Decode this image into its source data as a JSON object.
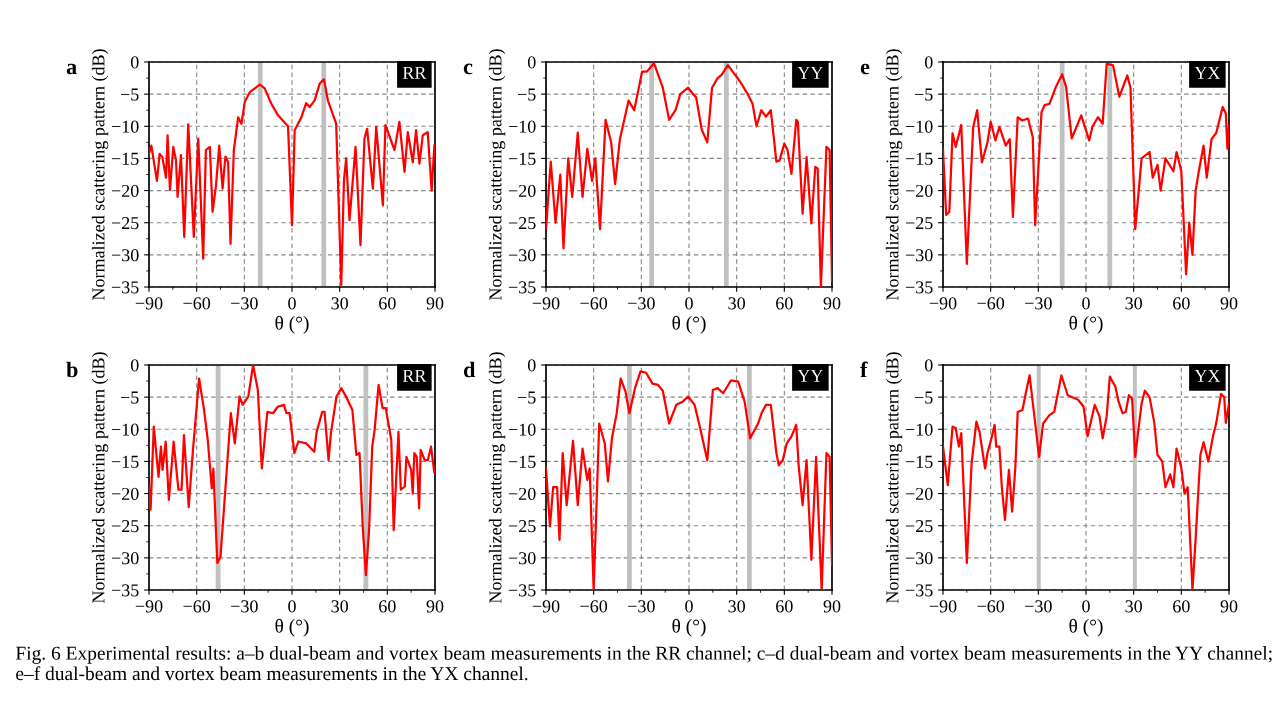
{
  "chart_data": [
    {
      "type": "line",
      "title": "a",
      "xlabel": "θ (°)",
      "ylabel": "Normalized scattering pattern (dB)",
      "annotations": [
        "RR"
      ],
      "grid": true,
      "xlim": [
        -90,
        90
      ],
      "ylim": [
        -35,
        0
      ],
      "xticks": [
        -90,
        -60,
        -30,
        0,
        30,
        60,
        90
      ],
      "yticks": [
        -35,
        -30,
        -25,
        -20,
        -15,
        -10,
        -5,
        0
      ],
      "bands": [
        {
          "axis": "x",
          "from": -21.5,
          "to": -18.5,
          "color": "#c0c0c0"
        },
        {
          "axis": "x",
          "from": 18.5,
          "to": 21.5,
          "color": "#c0c0c0"
        }
      ],
      "x": [
        -90,
        -88.5,
        -85,
        -83.3,
        -81.6,
        -79.3,
        -78.3,
        -76.8,
        -74.7,
        -73,
        -72,
        -69.9,
        -67.8,
        -65.3,
        -61.8,
        -59,
        -55.9,
        -54.2,
        -51.7,
        -50,
        -47.9,
        -45.8,
        -43.7,
        -41.9,
        -40.2,
        -38.7,
        -36.6,
        -33.9,
        -31.8,
        -29.7,
        -26.6,
        -23.4,
        -20.3,
        -17.2,
        -13,
        -8.8,
        -2.5,
        0,
        1.7,
        5.9,
        8.9,
        11.1,
        14.2,
        17.4,
        20.1,
        22.6,
        27.8,
        31,
        32.7,
        34.1,
        36.2,
        40,
        43.1,
        45.6,
        47.3,
        50.9,
        53,
        57.2,
        58.8,
        64.5,
        67.6,
        70.8,
        72.9,
        76,
        78.1,
        80.2,
        82.3,
        85.4,
        87.9,
        89.6
      ],
      "series": [
        {
          "color": "#ff0000",
          "values": [
            -14.3,
            -13,
            -18.5,
            -14.3,
            -14.8,
            -18,
            -11.4,
            -19.9,
            -13.2,
            -15.3,
            -21,
            -14.5,
            -27.2,
            -9.7,
            -27.2,
            -11.9,
            -30.6,
            -13.7,
            -13.2,
            -23.3,
            -19.4,
            -13,
            -19.7,
            -14.7,
            -15.6,
            -28.3,
            -13.7,
            -8.6,
            -9.6,
            -6.2,
            -4.7,
            -4.1,
            -3.5,
            -4.1,
            -6.5,
            -8.3,
            -10,
            -25.4,
            -10.6,
            -8.6,
            -6.4,
            -7,
            -6,
            -3.4,
            -2.7,
            -6,
            -9.6,
            -34.7,
            -18.4,
            -15,
            -24.6,
            -13.2,
            -28.5,
            -11.9,
            -10.4,
            -19.7,
            -10.1,
            -22.3,
            -9.8,
            -13.7,
            -9.3,
            -17.1,
            -10.9,
            -15.6,
            -10.6,
            -15.8,
            -11.4,
            -10.9,
            -20,
            -13
          ]
        }
      ]
    },
    {
      "type": "line",
      "title": "c",
      "xlabel": "θ (°)",
      "ylabel": "Normalized scattering pattern (dB)",
      "annotations": [
        "YY"
      ],
      "grid": true,
      "xlim": [
        -90,
        90
      ],
      "ylim": [
        -35,
        0
      ],
      "xticks": [
        -90,
        -60,
        -30,
        0,
        30,
        60,
        90
      ],
      "yticks": [
        -35,
        -30,
        -25,
        -20,
        -15,
        -10,
        -5,
        0
      ],
      "bands": [
        {
          "axis": "x",
          "from": -25,
          "to": -22,
          "color": "#c0c0c0"
        },
        {
          "axis": "x",
          "from": 22,
          "to": 25,
          "color": "#c0c0c0"
        }
      ],
      "x": [
        -90,
        -87,
        -84,
        -81,
        -79,
        -76,
        -73.5,
        -70,
        -67,
        -64,
        -61,
        -59,
        -56,
        -52.5,
        -49,
        -46.5,
        -43.5,
        -38,
        -34.5,
        -29.5,
        -26.5,
        -22,
        -16.5,
        -12.5,
        -8.5,
        -5.5,
        -0.5,
        2.5,
        4.5,
        8,
        11.5,
        14.5,
        18,
        20.5,
        24.5,
        27.5,
        32,
        37,
        40,
        42.5,
        45.5,
        48.5,
        51.5,
        55,
        57,
        60,
        62,
        64.5,
        67.5,
        68.5,
        71.5,
        74,
        77,
        79.5,
        81,
        83,
        86.5,
        88.5,
        90
      ],
      "series": [
        {
          "color": "#ff0000",
          "values": [
            -26,
            -15.5,
            -25,
            -17.5,
            -29,
            -15,
            -21,
            -11,
            -21,
            -13.5,
            -18.5,
            -15,
            -26,
            -9,
            -12.5,
            -19,
            -12,
            -6,
            -7.5,
            -1.5,
            -1.5,
            -0.2,
            -4,
            -9,
            -7.5,
            -5,
            -4,
            -5,
            -5.5,
            -10.5,
            -12.5,
            -4,
            -2.5,
            -2,
            -0.5,
            -1.5,
            -3,
            -5,
            -6.5,
            -10,
            -7.5,
            -8.5,
            -7.5,
            -15.5,
            -15.3,
            -12.7,
            -13.7,
            -17.4,
            -9,
            -9.3,
            -23.6,
            -14.8,
            -25.1,
            -16.3,
            -16.6,
            -35,
            -13.2,
            -13.7,
            -34
          ]
        }
      ]
    },
    {
      "type": "line",
      "title": "e",
      "xlabel": "θ (°)",
      "ylabel": "Normalized scattering pattern (dB)",
      "annotations": [
        "YX"
      ],
      "grid": true,
      "xlim": [
        -90,
        90
      ],
      "ylim": [
        -35,
        0
      ],
      "xticks": [
        -90,
        -60,
        -30,
        0,
        30,
        60,
        90
      ],
      "yticks": [
        -35,
        -30,
        -25,
        -20,
        -15,
        -10,
        -5,
        0
      ],
      "bands": [
        {
          "axis": "x",
          "from": -16.5,
          "to": -13.5,
          "color": "#c0c0c0"
        },
        {
          "axis": "x",
          "from": 13.5,
          "to": 16.5,
          "color": "#c0c0c0"
        }
      ],
      "x": [
        -90,
        -88,
        -86,
        -84,
        -82,
        -78.5,
        -75,
        -71,
        -68.5,
        -65.5,
        -62,
        -60,
        -57,
        -54.5,
        -50.5,
        -48,
        -46,
        -43,
        -40,
        -36.5,
        -33.5,
        -32,
        -28,
        -26,
        -23,
        -19,
        -15,
        -12.5,
        -9,
        -3,
        2,
        4,
        7.5,
        10.5,
        13,
        17,
        21,
        26,
        28,
        31,
        35,
        40,
        42,
        45,
        47,
        50,
        55,
        57,
        60,
        63,
        65,
        67,
        69,
        71,
        74,
        76,
        79,
        82,
        86,
        88,
        89,
        90
      ],
      "series": [
        {
          "color": "#ff0000",
          "values": [
            -13.7,
            -23.8,
            -23.3,
            -11.1,
            -13.2,
            -9.8,
            -31.4,
            -10.1,
            -7.5,
            -15.6,
            -12.5,
            -9.3,
            -12.2,
            -10.1,
            -13,
            -12,
            -24.1,
            -8.6,
            -9.1,
            -8.8,
            -11.7,
            -25.4,
            -7.8,
            -6.7,
            -6.5,
            -3.9,
            -1.9,
            -3.9,
            -11.9,
            -8.3,
            -12.2,
            -10.1,
            -8.6,
            -9.6,
            -0.3,
            -0.5,
            -5.4,
            -2.1,
            -4,
            -26,
            -15,
            -14,
            -18,
            -16,
            -20,
            -15,
            -17,
            -14,
            -17,
            -33,
            -25,
            -30,
            -20,
            -17,
            -13,
            -18,
            -12,
            -11,
            -7,
            -8,
            -13.5,
            -10
          ]
        }
      ]
    },
    {
      "type": "line",
      "title": "b",
      "xlabel": "θ (°)",
      "ylabel": "Normalized scattering pattern (dB)",
      "annotations": [
        "RR"
      ],
      "grid": true,
      "xlim": [
        -90,
        90
      ],
      "ylim": [
        -35,
        0
      ],
      "xticks": [
        -90,
        -60,
        -30,
        0,
        30,
        60,
        90
      ],
      "yticks": [
        -35,
        -30,
        -25,
        -20,
        -15,
        -10,
        -5,
        0
      ],
      "bands": [
        {
          "axis": "x",
          "from": -48,
          "to": -45,
          "color": "#c0c0c0"
        },
        {
          "axis": "x",
          "from": 45,
          "to": 48,
          "color": "#c0c0c0"
        }
      ],
      "x": [
        -90,
        -89,
        -87,
        -84,
        -82.5,
        -81.5,
        -79.5,
        -77.5,
        -74.5,
        -71.5,
        -69.5,
        -68,
        -65,
        -62.5,
        -58.5,
        -55.5,
        -53,
        -50.5,
        -49.5,
        -47,
        -45,
        -41,
        -38.5,
        -36,
        -33,
        -31,
        -27.5,
        -24.5,
        -21.5,
        -19,
        -15.5,
        -12,
        -9,
        -5,
        -3.5,
        -1.5,
        1.5,
        4,
        9,
        14,
        15.5,
        19,
        20.5,
        23,
        24.5,
        28,
        31,
        34,
        38,
        40.5,
        42.5,
        44.5,
        46.5,
        48.5,
        50.5,
        52,
        54.5,
        57,
        59,
        62.5,
        64,
        67,
        68.5,
        71,
        72,
        75,
        76,
        77,
        78.5,
        80,
        81,
        83.5,
        85.5,
        87.5,
        89.5
      ],
      "series": [
        {
          "color": "#ff0000",
          "values": [
            -19,
            -22.5,
            -9.6,
            -17.4,
            -12.7,
            -16.3,
            -11.9,
            -21,
            -11.9,
            -19.4,
            -19.4,
            -10.9,
            -22.1,
            -13.7,
            -2.1,
            -6.7,
            -11.7,
            -19.2,
            -16.1,
            -30.8,
            -29.8,
            -16.1,
            -7.5,
            -12.2,
            -4.9,
            -6.2,
            -4.9,
            0,
            -3.9,
            -16.1,
            -7.3,
            -7.5,
            -6.5,
            -6.2,
            -7.5,
            -7.5,
            -13.7,
            -11.9,
            -12.2,
            -13.5,
            -10.4,
            -7.3,
            -7.3,
            -14.8,
            -10.6,
            -4.9,
            -3.6,
            -4.9,
            -7,
            -14,
            -13.7,
            -25.1,
            -32.7,
            -25.7,
            -12.7,
            -10.1,
            -3.1,
            -6.7,
            -6.7,
            -11.7,
            -25.7,
            -10.4,
            -19.4,
            -18.9,
            -14.3,
            -16.3,
            -20,
            -13.7,
            -14.3,
            -22.3,
            -13.2,
            -14.8,
            -14.8,
            -12.7,
            -16.6
          ]
        }
      ]
    },
    {
      "type": "line",
      "title": "d",
      "xlabel": "θ (°)",
      "ylabel": "Normalized scattering pattern (dB)",
      "annotations": [
        "YY"
      ],
      "grid": true,
      "xlim": [
        -90,
        90
      ],
      "ylim": [
        -35,
        0
      ],
      "xticks": [
        -90,
        -60,
        -30,
        0,
        30,
        60,
        90
      ],
      "yticks": [
        -35,
        -30,
        -25,
        -20,
        -15,
        -10,
        -5,
        0
      ],
      "bands": [
        {
          "axis": "x",
          "from": -39,
          "to": -36,
          "color": "#c0c0c0"
        },
        {
          "axis": "x",
          "from": 36.5,
          "to": 39.5,
          "color": "#c0c0c0"
        }
      ],
      "x": [
        -90,
        -87.5,
        -85.5,
        -83,
        -81.5,
        -79.5,
        -77,
        -73,
        -70,
        -67,
        -64,
        -62.5,
        -60,
        -56.5,
        -53,
        -51,
        -48.5,
        -45.5,
        -43,
        -40,
        -37.5,
        -34,
        -30.5,
        -27,
        -23,
        -19.5,
        -16.5,
        -12.5,
        -8,
        -4,
        -0.5,
        3.5,
        7,
        11.5,
        15,
        18,
        21.5,
        26.5,
        31,
        35,
        38.5,
        43.5,
        46,
        48.5,
        51.5,
        55,
        56.5,
        59,
        61.5,
        64.5,
        67.5,
        69,
        71.5,
        74,
        77,
        80,
        83.5,
        86.5,
        88.5,
        90
      ],
      "series": [
        {
          "color": "#ff0000",
          "values": [
            -16.1,
            -25.1,
            -19,
            -19,
            -27.2,
            -13.7,
            -21.8,
            -11.8,
            -21.8,
            -13,
            -17.9,
            -16.1,
            -35,
            -9.1,
            -12.2,
            -18.1,
            -11.4,
            -7.5,
            -2.1,
            -4.1,
            -7.5,
            -3.6,
            -1,
            -1.2,
            -2.9,
            -3.1,
            -4,
            -9.1,
            -6.2,
            -5.7,
            -4.9,
            -6.2,
            -9.8,
            -14.8,
            -3.9,
            -3.6,
            -4.4,
            -2.4,
            -2.6,
            -5.7,
            -11.4,
            -9.1,
            -7.3,
            -6.2,
            -6.2,
            -13.7,
            -15.6,
            -14.8,
            -12.2,
            -11.1,
            -9.3,
            -15.6,
            -21.8,
            -14.8,
            -30.3,
            -14.3,
            -35,
            -13.7,
            -14.3,
            -31.1
          ]
        }
      ]
    },
    {
      "type": "line",
      "title": "f",
      "xlabel": "θ (°)",
      "ylabel": "Normalized scattering pattern (dB)",
      "annotations": [
        "YX",
        "Fig. 6 Experimental results: a–b dual-beam and vortex beam measurements in the RR channel; c–d dual-beam and vortex beam measurements in the YY channel; e–f dual-beam and vortex beam measurements in the YX channel."
      ],
      "grid": true,
      "xlim": [
        -90,
        90
      ],
      "ylim": [
        -35,
        0
      ],
      "xticks": [
        -90,
        -60,
        -30,
        0,
        30,
        60,
        90
      ],
      "yticks": [
        -35,
        -30,
        -25,
        -20,
        -15,
        -10,
        -5,
        0
      ],
      "bands": [
        {
          "axis": "x",
          "from": -31,
          "to": -28.5,
          "color": "#c0c0c0"
        },
        {
          "axis": "x",
          "from": 29.5,
          "to": 32,
          "color": "#c0c0c0"
        }
      ],
      "x": [
        -90,
        -87,
        -84,
        -82,
        -80,
        -78.5,
        -75,
        -72,
        -69,
        -67,
        -63.5,
        -62,
        -59.5,
        -57.5,
        -56.5,
        -54.5,
        -53,
        -51,
        -48.5,
        -46.5,
        -44.5,
        -43,
        -40,
        -37.5,
        -35.5,
        -29.5,
        -27,
        -23,
        -20,
        -15.5,
        -11.5,
        -5,
        -1.5,
        1,
        4,
        5.5,
        8.5,
        10.5,
        13,
        15,
        18.5,
        20.5,
        23,
        25,
        27,
        29,
        31,
        33,
        35,
        37,
        40,
        43,
        45,
        48,
        50,
        53,
        55,
        57,
        60,
        62,
        64,
        67,
        69,
        72,
        74,
        77,
        80,
        82,
        85,
        87,
        88,
        90
      ],
      "series": [
        {
          "color": "#ff0000",
          "values": [
            -12.7,
            -18.7,
            -9.6,
            -9.8,
            -12.7,
            -10.6,
            -30.8,
            -15.3,
            -8.8,
            -10.4,
            -16.1,
            -13.7,
            -11.4,
            -9.3,
            -12.7,
            -12.7,
            -18.9,
            -24.1,
            -16.3,
            -22.8,
            -16.1,
            -7.3,
            -7,
            -3.9,
            -1.6,
            -14.3,
            -9.1,
            -7.8,
            -7.3,
            -1.6,
            -4.7,
            -5.4,
            -6.5,
            -11.1,
            -7.8,
            -6.2,
            -8,
            -11.4,
            -8,
            -1.8,
            -3.4,
            -5.7,
            -7.5,
            -7.3,
            -4.7,
            -5.2,
            -14.3,
            -10,
            -6,
            -4,
            -5,
            -9,
            -14,
            -15,
            -19,
            -17,
            -19,
            -13,
            -16,
            -20,
            -19,
            -35,
            -27,
            -14,
            -12,
            -15,
            -11,
            -9,
            -4.5,
            -5,
            -9,
            -6
          ]
        }
      ]
    }
  ]
}
